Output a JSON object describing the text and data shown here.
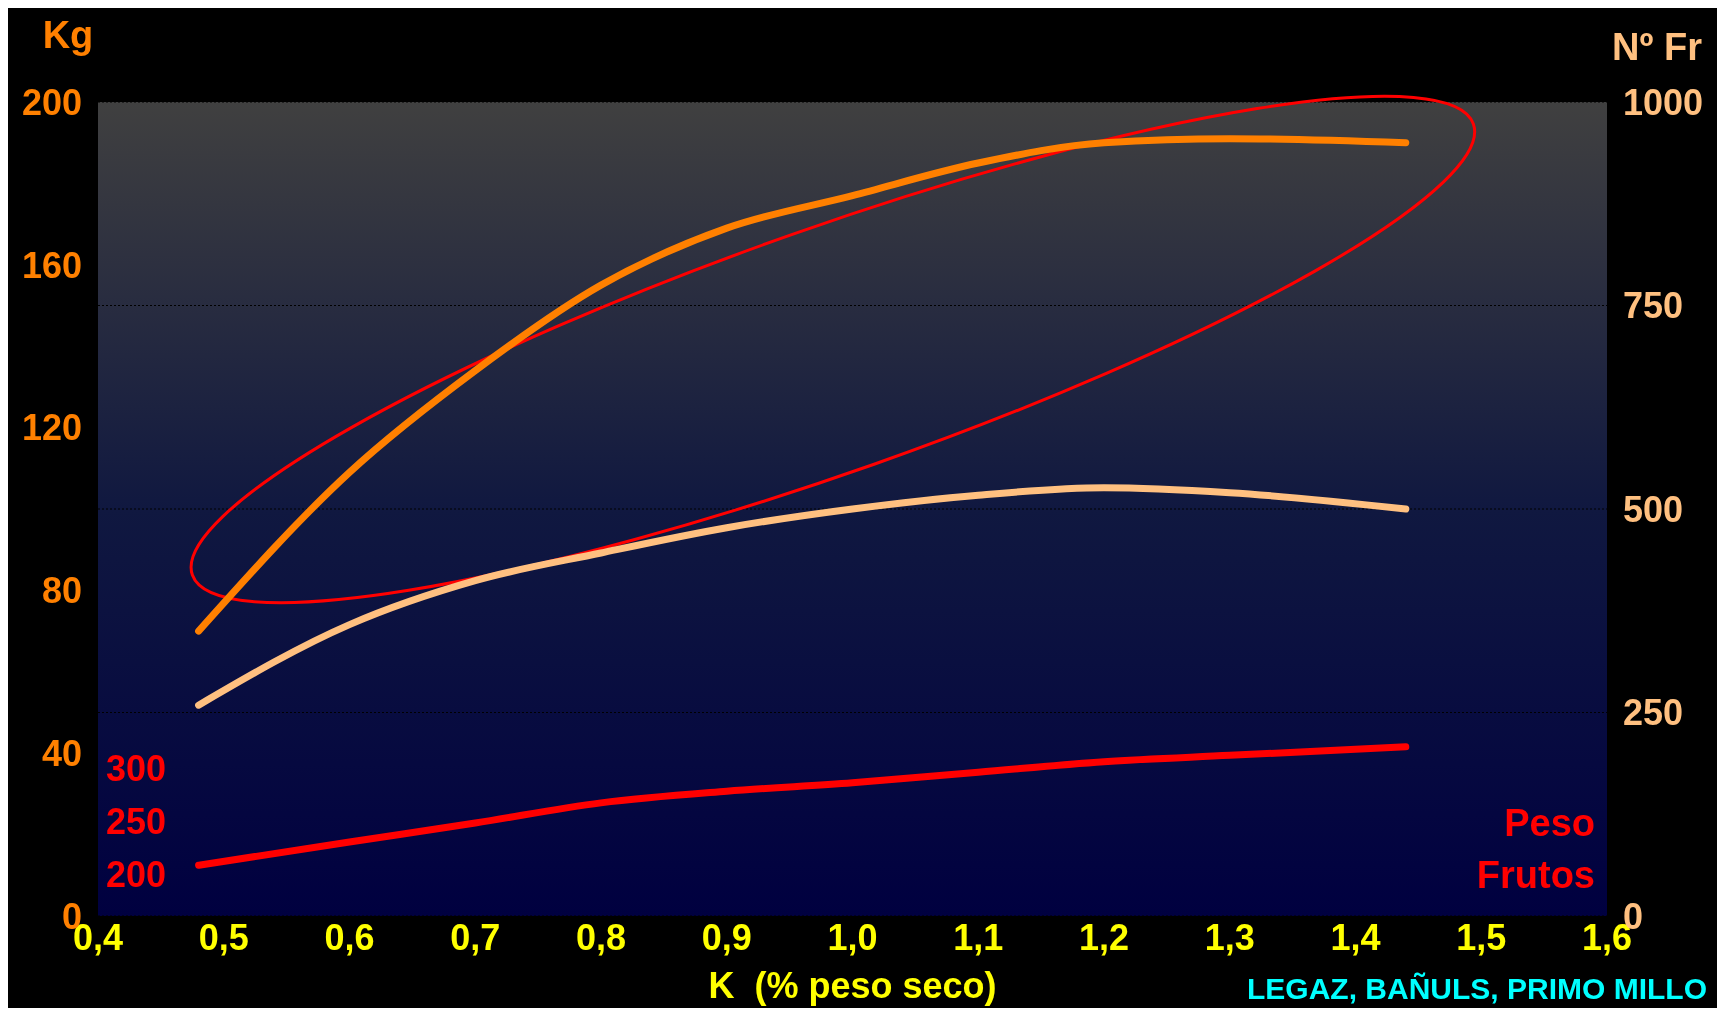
{
  "chart_data": {
    "type": "line",
    "xlabel": "K  (% peso seco)",
    "ylabel": "Kg",
    "y2label": "Nº Fr",
    "y3label": "Peso Frutos",
    "annotations": [
      "LEGAZ, BAÑULS, PRIMO MILLO"
    ],
    "x": [
      0.48,
      0.6,
      0.7,
      0.8,
      0.9,
      1.0,
      1.1,
      1.2,
      1.3,
      1.44
    ],
    "xlim": [
      0.4,
      1.6
    ],
    "xticks": [
      {
        "value": 0.4,
        "label": "0,4"
      },
      {
        "value": 0.5,
        "label": "0,5"
      },
      {
        "value": 0.6,
        "label": "0,6"
      },
      {
        "value": 0.7,
        "label": "0,7"
      },
      {
        "value": 0.8,
        "label": "0,8"
      },
      {
        "value": 0.9,
        "label": "0,9"
      },
      {
        "value": 1.0,
        "label": "1,0"
      },
      {
        "value": 1.1,
        "label": "1,1"
      },
      {
        "value": 1.2,
        "label": "1,2"
      },
      {
        "value": 1.3,
        "label": "1,3"
      },
      {
        "value": 1.4,
        "label": "1,4"
      },
      {
        "value": 1.5,
        "label": "1,5"
      },
      {
        "value": 1.6,
        "label": "1,6"
      }
    ],
    "ylim": [
      0,
      200
    ],
    "yticks": [
      0,
      40,
      80,
      120,
      160,
      200
    ],
    "y2lim": [
      0,
      1000
    ],
    "y2ticks": [
      0,
      250,
      500,
      750,
      1000
    ],
    "y3lim": [
      160,
      930
    ],
    "y3ticks": [
      200,
      250,
      300
    ],
    "grid": "y2",
    "series": [
      {
        "color": "#ff8000",
        "axis": "y",
        "values": [
          70,
          109,
          134,
          155,
          169,
          177,
          185,
          190,
          191,
          190
        ]
      },
      {
        "color": "#ffc080",
        "axis": "y2",
        "values": [
          259,
          358,
          412,
          446,
          477,
          500,
          517,
          526,
          520,
          500
        ]
      },
      {
        "color": "#ff0000",
        "axis": "y3",
        "values": [
          208,
          230,
          248,
          267,
          278,
          286,
          296,
          306,
          312,
          320
        ]
      }
    ]
  }
}
